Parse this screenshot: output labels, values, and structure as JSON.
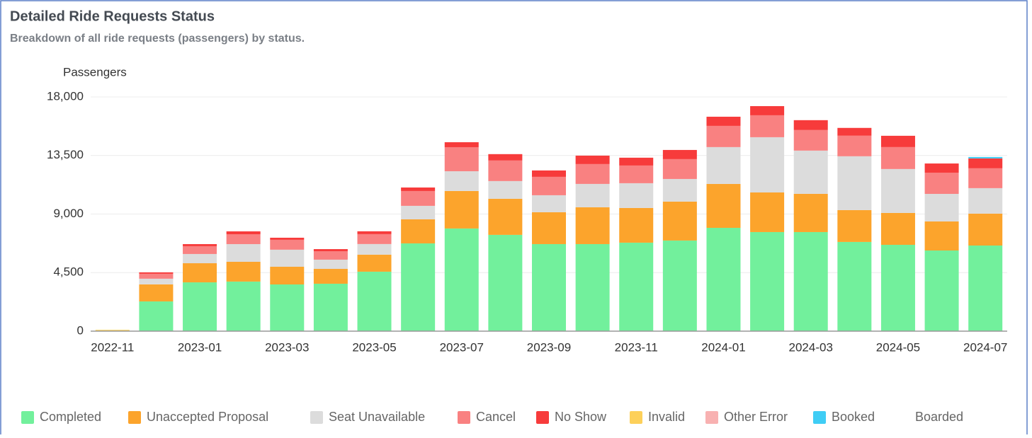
{
  "chart_data": {
    "type": "stacked_bar",
    "title": "Detailed Ride Requests Status",
    "subtitle": "Breakdown of all ride requests (passengers) by status.",
    "y_label": "Passengers",
    "categories": [
      "2022-11",
      null,
      "2023-01",
      null,
      "2023-03",
      null,
      "2023-05",
      null,
      "2023-07",
      null,
      "2023-09",
      null,
      "2023-11",
      null,
      "2024-01",
      null,
      "2024-03",
      null,
      "2024-05",
      null,
      "2024-07"
    ],
    "series": [
      {
        "name": "Completed",
        "color": "#72f09c",
        "values": [
          0,
          2285,
          3750,
          3810,
          3590,
          3645,
          4570,
          6745,
          7890,
          7400,
          6690,
          6690,
          6800,
          6965,
          7940,
          7615,
          7615,
          6855,
          6635,
          6200,
          6580
        ]
      },
      {
        "name": "Unaccepted Proposal",
        "color": "#fca42c",
        "values": [
          0,
          1310,
          1470,
          1520,
          1360,
          1140,
          1310,
          1850,
          2880,
          2775,
          2450,
          2830,
          2665,
          2990,
          3375,
          3045,
          2940,
          2450,
          2450,
          2230,
          2450
        ]
      },
      {
        "name": "Seat Unavailable",
        "color": "#dcdcdc",
        "values": [
          0,
          435,
          710,
          1360,
          1310,
          710,
          815,
          1035,
          1520,
          1360,
          1305,
          1795,
          1905,
          1740,
          2830,
          4245,
          3320,
          4135,
          3375,
          2120,
          1960
        ]
      },
      {
        "name": "Cancel",
        "color": "#f98181",
        "values": [
          0,
          380,
          600,
          760,
          760,
          650,
          760,
          1140,
          1850,
          1580,
          1415,
          1525,
          1360,
          1525,
          1630,
          1685,
          1580,
          1580,
          1685,
          1630,
          1525
        ]
      },
      {
        "name": "No Show",
        "color": "#f73b3b",
        "values": [
          0,
          110,
          160,
          220,
          160,
          160,
          220,
          270,
          380,
          490,
          490,
          650,
          600,
          705,
          705,
          705,
          760,
          600,
          870,
          705,
          760
        ]
      },
      {
        "name": "Invalid",
        "color": "#fdd05a",
        "values": [
          100,
          0,
          0,
          0,
          0,
          0,
          0,
          0,
          0,
          0,
          0,
          0,
          0,
          0,
          0,
          0,
          0,
          0,
          0,
          0,
          0
        ]
      },
      {
        "name": "Other Error",
        "color": "#f8b1b1",
        "values": [
          0,
          0,
          0,
          0,
          0,
          0,
          0,
          0,
          0,
          0,
          0,
          0,
          0,
          0,
          0,
          0,
          0,
          0,
          0,
          0,
          0
        ]
      },
      {
        "name": "Booked",
        "color": "#3fcdf5",
        "values": [
          0,
          0,
          0,
          0,
          0,
          0,
          0,
          0,
          0,
          0,
          0,
          0,
          0,
          0,
          0,
          0,
          0,
          0,
          0,
          0,
          110
        ]
      },
      {
        "name": "Boarded",
        "values": [
          0,
          0,
          0,
          0,
          0,
          0,
          0,
          0,
          0,
          0,
          0,
          0,
          0,
          0,
          0,
          0,
          0,
          0,
          0,
          0,
          0
        ]
      }
    ],
    "ylim": [
      0,
      18000
    ],
    "yticks": [
      0,
      {
        "value": 4500,
        "label": "4,500"
      },
      {
        "value": 9000,
        "label": "9,000"
      },
      {
        "value": 13500,
        "label": "13,500"
      },
      {
        "value": 18000,
        "label": "18,000"
      }
    ],
    "grid": true,
    "legend": "bottom"
  }
}
